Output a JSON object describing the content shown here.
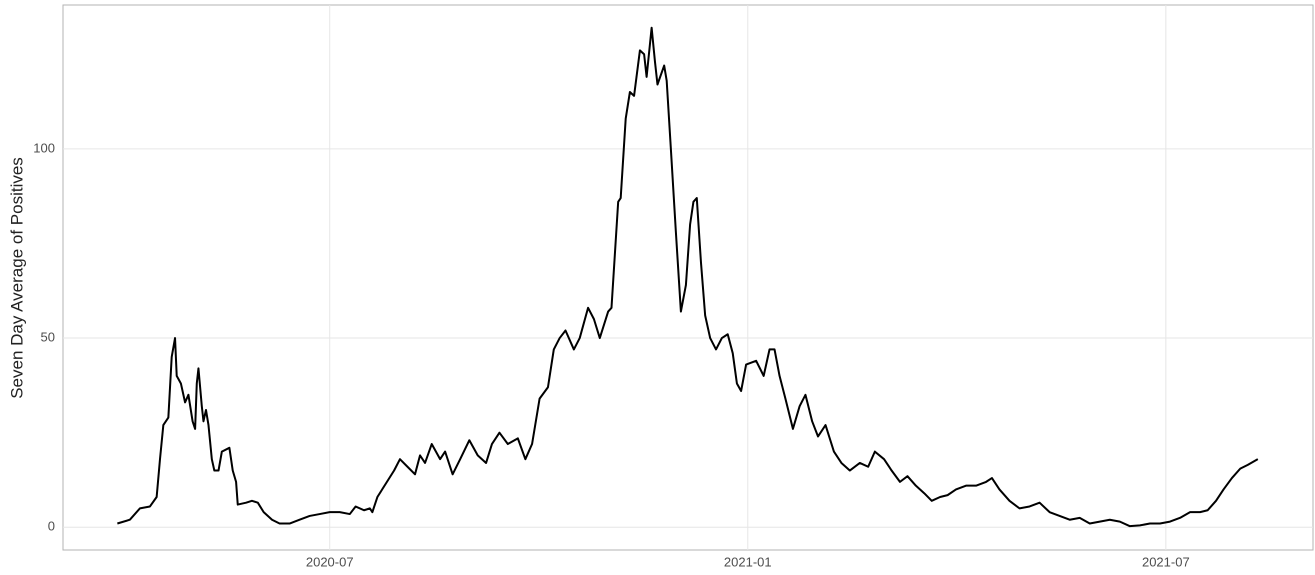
{
  "chart_data": {
    "type": "line",
    "y_label": "Seven Day Average of Positives",
    "x": [
      2020.246,
      2020.261,
      2020.273,
      2020.285,
      2020.293,
      2020.297,
      2020.301,
      2020.307,
      2020.311,
      2020.315,
      2020.317,
      2020.322,
      2020.327,
      2020.331,
      2020.336,
      2020.339,
      2020.341,
      2020.343,
      2020.347,
      2020.349,
      2020.352,
      2020.355,
      2020.359,
      2020.362,
      2020.367,
      2020.371,
      2020.38,
      2020.384,
      2020.388,
      2020.39,
      2020.4,
      2020.407,
      2020.414,
      2020.421,
      2020.431,
      2020.44,
      2020.452,
      2020.464,
      2020.476,
      2020.488,
      2020.5,
      2020.512,
      2020.524,
      2020.531,
      2020.541,
      2020.548,
      2020.551,
      2020.557,
      2020.567,
      2020.577,
      2020.584,
      2020.593,
      2020.602,
      2020.608,
      2020.614,
      2020.622,
      2020.632,
      2020.638,
      2020.647,
      2020.656,
      2020.667,
      2020.677,
      2020.687,
      2020.694,
      2020.703,
      2020.713,
      2020.725,
      2020.734,
      2020.742,
      2020.751,
      2020.761,
      2020.768,
      2020.775,
      2020.782,
      2020.792,
      2020.799,
      2020.809,
      2020.816,
      2020.823,
      2020.833,
      2020.837,
      2020.845,
      2020.848,
      2020.854,
      2020.859,
      2020.864,
      2020.871,
      2020.876,
      2020.879,
      2020.885,
      2020.889,
      2020.892,
      2020.9,
      2020.903,
      2020.908,
      2020.914,
      2020.92,
      2020.926,
      2020.931,
      2020.935,
      2020.939,
      2020.944,
      2020.949,
      2020.955,
      2020.962,
      2020.969,
      2020.976,
      2020.982,
      2020.987,
      2020.992,
      2020.998,
      2021.01,
      2021.019,
      2021.026,
      2021.032,
      2021.038,
      2021.045,
      2021.054,
      2021.062,
      2021.069,
      2021.077,
      2021.084,
      2021.093,
      2021.103,
      2021.112,
      2021.122,
      2021.134,
      2021.144,
      2021.152,
      2021.163,
      2021.172,
      2021.182,
      2021.191,
      2021.201,
      2021.211,
      2021.22,
      2021.23,
      2021.239,
      2021.249,
      2021.261,
      2021.273,
      2021.285,
      2021.292,
      2021.301,
      2021.313,
      2021.325,
      2021.337,
      2021.349,
      2021.361,
      2021.373,
      2021.385,
      2021.397,
      2021.409,
      2021.421,
      2021.433,
      2021.445,
      2021.457,
      2021.469,
      2021.481,
      2021.493,
      2021.505,
      2021.517,
      2021.529,
      2021.541,
      2021.55,
      2021.56,
      2021.569,
      2021.579,
      2021.589,
      2021.598,
      2021.61
    ],
    "series": [
      {
        "color": "#000000",
        "values": [
          1,
          2,
          5,
          5.5,
          8,
          18,
          27,
          29,
          45,
          50,
          40,
          38,
          33,
          35,
          28,
          26,
          38,
          42,
          32,
          28,
          31,
          27,
          18,
          15,
          15,
          20,
          21,
          15,
          12,
          6,
          6.5,
          7,
          6.5,
          4,
          2,
          1,
          1,
          2,
          3,
          3.5,
          4,
          4,
          3.5,
          5.5,
          4.5,
          5,
          4,
          8,
          11.5,
          15,
          18,
          16,
          14,
          19,
          17,
          22,
          18,
          20,
          14,
          18,
          23,
          19,
          17,
          22,
          25,
          22,
          23.5,
          18,
          22,
          34,
          37,
          47,
          50,
          52,
          47,
          50,
          58,
          55,
          50,
          57,
          58,
          86,
          87,
          108,
          115,
          114,
          126,
          125,
          119,
          132,
          123,
          117,
          122,
          118,
          100,
          78,
          57,
          64,
          80,
          86,
          87,
          70,
          56,
          50,
          47,
          50,
          51,
          46,
          38,
          36,
          43,
          44,
          40,
          47,
          47,
          40,
          34,
          26,
          32,
          35,
          28,
          24,
          27,
          20,
          17,
          15,
          17,
          16,
          20,
          18,
          15,
          12,
          13.5,
          11,
          9,
          7,
          8,
          8.5,
          10,
          11,
          11,
          12,
          13,
          10,
          7,
          5,
          5.5,
          6.5,
          4,
          3,
          2,
          2.5,
          1,
          1.5,
          2,
          1.5,
          0.3,
          0.5,
          1,
          1,
          1.5,
          2.5,
          4,
          4,
          4.5,
          7,
          10,
          13,
          15.5,
          16.5,
          18
        ]
      }
    ],
    "xlim": [
      2020.181,
      2021.676
    ],
    "ylim": [
      -6,
      138
    ],
    "xticks": [
      {
        "value": 2020.5,
        "label": "2020-07"
      },
      {
        "value": 2021.0,
        "label": "2021-01"
      },
      {
        "value": 2021.5,
        "label": "2021-07"
      }
    ],
    "yticks": [
      0,
      50,
      100
    ],
    "grid": true
  }
}
